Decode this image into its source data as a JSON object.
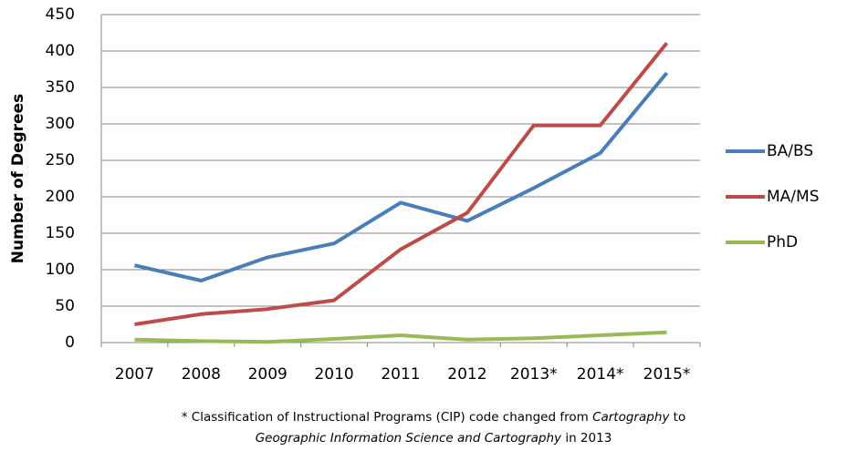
{
  "chart_data": {
    "type": "line",
    "y_label": "Number of Degrees",
    "categories": [
      "2007",
      "2008",
      "2009",
      "2010",
      "2011",
      "2012",
      "2013*",
      "2014*",
      "2015*"
    ],
    "series": [
      {
        "name": "BA/BS",
        "color": "#4a7ebb",
        "values": [
          106,
          85,
          117,
          136,
          192,
          167,
          212,
          260,
          370
        ]
      },
      {
        "name": "MA/MS",
        "color": "#be4b48",
        "values": [
          25,
          39,
          46,
          58,
          128,
          178,
          298,
          298,
          411
        ]
      },
      {
        "name": "PhD",
        "color": "#98b954",
        "values": [
          4,
          2,
          1,
          5,
          10,
          4,
          6,
          10,
          14
        ]
      }
    ],
    "ylim": [
      0,
      450
    ],
    "yticks": [
      0,
      50,
      100,
      150,
      200,
      250,
      300,
      350,
      400,
      450
    ],
    "grid": true,
    "legend": "right",
    "footnote": [
      [
        {
          "text": "* Classification of Instructional Programs (CIP) code changed from ",
          "italic": false
        },
        {
          "text": "Cartography",
          "italic": true
        },
        {
          "text": " to",
          "italic": false
        }
      ],
      [
        {
          "text": "Geographic Information Science and Cartography",
          "italic": true
        },
        {
          "text": " in 2013",
          "italic": false
        }
      ]
    ]
  }
}
